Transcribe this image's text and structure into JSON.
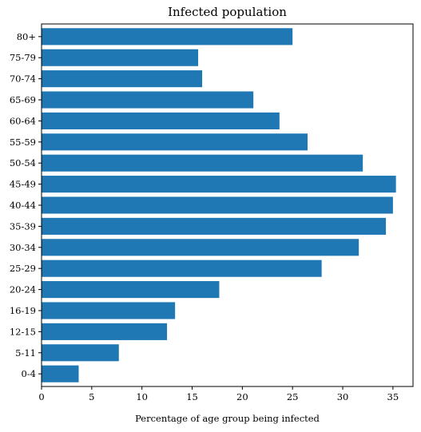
{
  "chart_data": {
    "type": "bar",
    "orientation": "horizontal",
    "title": "Infected population",
    "xlabel": "Percentage of age group being infected",
    "ylabel": "",
    "categories": [
      "0-4",
      "5-11",
      "12-15",
      "16-19",
      "20-24",
      "25-29",
      "30-34",
      "35-39",
      "40-44",
      "45-49",
      "50-54",
      "55-59",
      "60-64",
      "65-69",
      "70-74",
      "75-79",
      "80+"
    ],
    "values": [
      3.7,
      7.7,
      12.5,
      13.3,
      17.7,
      27.9,
      31.6,
      34.3,
      35.0,
      35.3,
      32.0,
      26.5,
      23.7,
      21.1,
      16.0,
      15.6,
      25.0
    ],
    "xlim": [
      0,
      37
    ],
    "xticks": [
      0,
      5,
      10,
      15,
      20,
      25,
      30,
      35
    ],
    "grid": false,
    "bar_color": "#1f77b4"
  }
}
